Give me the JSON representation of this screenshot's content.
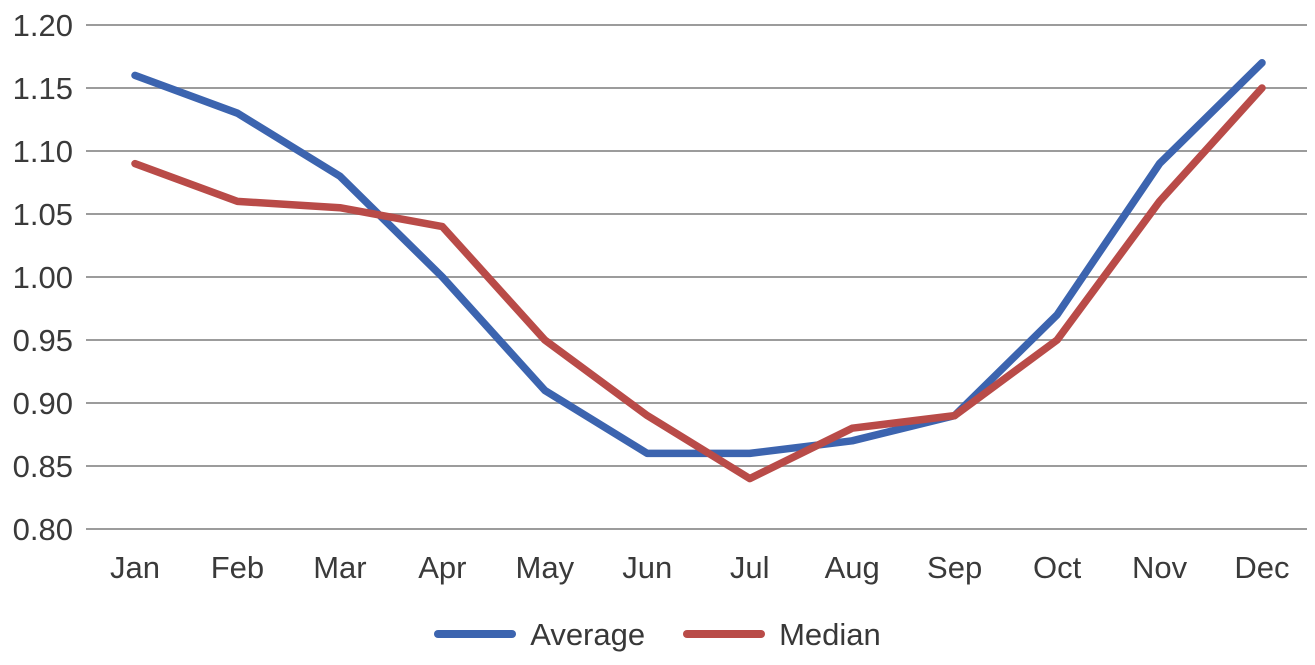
{
  "chart_data": {
    "type": "line",
    "categories": [
      "Jan",
      "Feb",
      "Mar",
      "Apr",
      "May",
      "Jun",
      "Jul",
      "Aug",
      "Sep",
      "Oct",
      "Nov",
      "Dec"
    ],
    "series": [
      {
        "name": "Average",
        "color": "#3c64af",
        "values": [
          1.16,
          1.13,
          1.08,
          1.0,
          0.91,
          0.86,
          0.86,
          0.87,
          0.89,
          0.97,
          1.09,
          1.17
        ]
      },
      {
        "name": "Median",
        "color": "#b94b48",
        "values": [
          1.09,
          1.06,
          1.055,
          1.04,
          0.95,
          0.89,
          0.84,
          0.88,
          0.89,
          0.95,
          1.06,
          1.15
        ]
      }
    ],
    "ylim": [
      0.8,
      1.2
    ],
    "y_tick_step": 0.05,
    "y_tick_labels": [
      "1.20",
      "1.15",
      "1.10",
      "1.05",
      "1.00",
      "0.95",
      "0.90",
      "0.85",
      "0.80"
    ],
    "x_tick_labels": [
      "Jan",
      "Feb",
      "Mar",
      "Apr",
      "May",
      "Jun",
      "Jul",
      "Aug",
      "Sep",
      "Oct",
      "Nov",
      "Dec"
    ],
    "grid": "horizontal",
    "legend_position": "bottom",
    "colors": {
      "gridline": "#9c9c9c",
      "tick_text": "#3a3a3a",
      "background": "#ffffff"
    }
  }
}
